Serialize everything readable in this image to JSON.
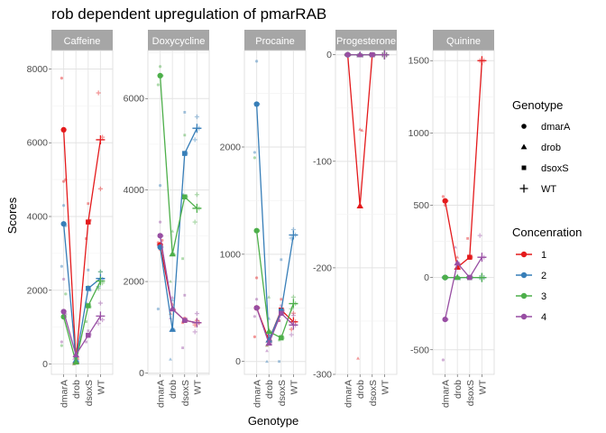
{
  "chart_data": {
    "type": "line",
    "title": "rob dependent upregulation of pmarRAB",
    "xlabel": "Genotype",
    "ylabel": "Scores",
    "x": [
      "dmarA",
      "drob",
      "dsoxS",
      "WT"
    ],
    "grid": true,
    "legends": [
      {
        "title": "Genotype",
        "entries": [
          {
            "label": "dmarA",
            "shape": "circle"
          },
          {
            "label": "drob",
            "shape": "triangle"
          },
          {
            "label": "dsoxS",
            "shape": "square"
          },
          {
            "label": "WT",
            "shape": "plus"
          }
        ]
      },
      {
        "title": "Concenration",
        "entries": [
          {
            "label": "1",
            "color": "#E41A1C"
          },
          {
            "label": "2",
            "color": "#377EB8"
          },
          {
            "label": "3",
            "color": "#4DAF4A"
          },
          {
            "label": "4",
            "color": "#984EA3"
          }
        ]
      }
    ],
    "panels": [
      {
        "name": "Caffeine",
        "ylim": [
          -280,
          8500
        ],
        "yticks": [
          "0",
          "2000",
          "4000",
          "6000",
          "8000"
        ],
        "series": [
          {
            "name": "1",
            "color": "#E41A1C",
            "values": [
              6350,
              80,
              3850,
              6080
            ],
            "raw": [
              [
                7750,
                4950,
                5000
              ],
              [
                0,
                200,
                150
              ],
              [
                3400,
                4350,
                3900
              ],
              [
                7350,
                4750,
                6150
              ]
            ]
          },
          {
            "name": "2",
            "color": "#377EB8",
            "values": [
              3800,
              100,
              2050,
              2320
            ],
            "raw": [
              [
                2650,
                4300,
                3750
              ],
              [
                50,
                250,
                100
              ],
              [
                1650,
                2550,
                2000
              ],
              [
                2100,
                2500,
                2300
              ]
            ]
          },
          {
            "name": "3",
            "color": "#4DAF4A",
            "values": [
              1280,
              50,
              1580,
              2250
            ],
            "raw": [
              [
                500,
                1350,
                1900
              ],
              [
                0,
                100,
                50
              ],
              [
                1150,
                2100,
                1550
              ],
              [
                2050,
                2500,
                2200
              ]
            ]
          },
          {
            "name": "4",
            "color": "#984EA3",
            "values": [
              1420,
              250,
              780,
              1300
            ],
            "raw": [
              [
                600,
                2300,
                1350
              ],
              [
                150,
                400,
                200
              ],
              [
                600,
                900,
                800
              ],
              [
                1100,
                1650,
                1200
              ]
            ]
          }
        ]
      },
      {
        "name": "Doxycycline",
        "ylim": [
          -30,
          7050
        ],
        "yticks": [
          "0",
          "2000",
          "4000",
          "6000"
        ],
        "series": [
          {
            "name": "1",
            "color": "#E41A1C",
            "values": [
              2800,
              1400,
              1150,
              1100
            ],
            "raw": [
              [
                2850,
                2700,
                2900
              ],
              [
                1300,
                1500,
                1400
              ],
              [
                1100,
                1200,
                1150
              ],
              [
                1050,
                1150,
                1100
              ]
            ]
          },
          {
            "name": "2",
            "color": "#377EB8",
            "values": [
              2750,
              950,
              4800,
              5350
            ],
            "raw": [
              [
                1400,
                4100,
                2750
              ],
              [
                300,
                1600,
                950
              ],
              [
                3900,
                5700,
                4800
              ],
              [
                5100,
                5600,
                5350
              ]
            ]
          },
          {
            "name": "3",
            "color": "#4DAF4A",
            "values": [
              6500,
              2600,
              3850,
              3600
            ],
            "raw": [
              [
                6300,
                6700,
                6500
              ],
              [
                2000,
                3100,
                2600
              ],
              [
                2500,
                5200,
                3850
              ],
              [
                3300,
                3900,
                3600
              ]
            ]
          },
          {
            "name": "4",
            "color": "#984EA3",
            "values": [
              3000,
              1400,
              1150,
              1100
            ],
            "raw": [
              [
                2800,
                3300,
                3000
              ],
              [
                1200,
                1650,
                1400
              ],
              [
                550,
                1700,
                1150
              ],
              [
                900,
                1300,
                1100
              ]
            ]
          }
        ]
      },
      {
        "name": "Procaine",
        "ylim": [
          -120,
          2900
        ],
        "yticks": [
          "0",
          "1000",
          "2000"
        ],
        "series": [
          {
            "name": "1",
            "color": "#E41A1C",
            "values": [
              500,
              200,
              480,
              370
            ],
            "raw": [
              [
                230,
                780,
                500
              ],
              [
                150,
                250,
                200
              ],
              [
                380,
                580,
                480
              ],
              [
                300,
                450,
                370
              ]
            ]
          },
          {
            "name": "2",
            "color": "#377EB8",
            "values": [
              2400,
              200,
              470,
              1180
            ],
            "raw": [
              [
                1950,
                2800,
                2400
              ],
              [
                0,
                400,
                200
              ],
              [
                0,
                950,
                470
              ],
              [
                1150,
                1230,
                1180
              ]
            ]
          },
          {
            "name": "3",
            "color": "#4DAF4A",
            "values": [
              1220,
              280,
              220,
              540
            ],
            "raw": [
              [
                1900,
                500,
                1220
              ],
              [
                150,
                600,
                280
              ],
              [
                200,
                240,
                220
              ],
              [
                490,
                600,
                540
              ]
            ]
          },
          {
            "name": "4",
            "color": "#984EA3",
            "values": [
              500,
              170,
              450,
              340
            ],
            "raw": [
              [
                420,
                580,
                500
              ],
              [
                100,
                250,
                170
              ],
              [
                380,
                520,
                450
              ],
              [
                250,
                430,
                340
              ]
            ]
          }
        ]
      },
      {
        "name": "Progesterone",
        "ylim": [
          -300,
          4
        ],
        "yticks": [
          "-300",
          "-200",
          "-100",
          "0"
        ],
        "series": [
          {
            "name": "1",
            "color": "#E41A1C",
            "values": [
              0,
              -142,
              0,
              0
            ],
            "raw": [
              [
                0,
                0,
                0
              ],
              [
                -285,
                -70,
                -71
              ],
              [
                0,
                0,
                0
              ],
              [
                0,
                0,
                0
              ]
            ]
          },
          {
            "name": "2",
            "color": "#377EB8",
            "values": [
              0,
              0,
              0,
              0
            ],
            "raw": [
              [
                0,
                0,
                0
              ],
              [
                0,
                0,
                0
              ],
              [
                0,
                0,
                0
              ],
              [
                0,
                0,
                0
              ]
            ]
          },
          {
            "name": "3",
            "color": "#4DAF4A",
            "values": [
              0,
              0,
              0,
              0
            ],
            "raw": [
              [
                0,
                0,
                0
              ],
              [
                0,
                0,
                0
              ],
              [
                0,
                0,
                0
              ],
              [
                0,
                0,
                0
              ]
            ]
          },
          {
            "name": "4",
            "color": "#984EA3",
            "values": [
              0,
              0,
              0,
              0
            ],
            "raw": [
              [
                0,
                0,
                0
              ],
              [
                0,
                0,
                0
              ],
              [
                0,
                0,
                0
              ],
              [
                0,
                0,
                0
              ]
            ]
          }
        ]
      },
      {
        "name": "Quinine",
        "ylim": [
          -670,
          1570
        ],
        "yticks": [
          "-500",
          "0",
          "500",
          "1000",
          "1500"
        ],
        "series": [
          {
            "name": "1",
            "color": "#E41A1C",
            "values": [
              530,
              70,
              140,
              1500
            ],
            "raw": [
              [
                560,
                500,
                530
              ],
              [
                0,
                140,
                70
              ],
              [
                270,
                0,
                140
              ],
              [
                1500,
                1500,
                1500
              ]
            ]
          },
          {
            "name": "2",
            "color": "#377EB8",
            "values": [
              0,
              0,
              0,
              0
            ],
            "raw": [
              [
                0,
                0,
                0
              ],
              [
                0,
                0,
                0
              ],
              [
                0,
                0,
                0
              ],
              [
                0,
                0,
                0
              ]
            ]
          },
          {
            "name": "3",
            "color": "#4DAF4A",
            "values": [
              0,
              0,
              0,
              0
            ],
            "raw": [
              [
                0,
                0,
                0
              ],
              [
                0,
                0,
                0
              ],
              [
                0,
                0,
                0
              ],
              [
                0,
                0,
                0
              ]
            ]
          },
          {
            "name": "4",
            "color": "#984EA3",
            "values": [
              -290,
              100,
              0,
              140
            ],
            "raw": [
              [
                -570,
                -10,
                -290
              ],
              [
                210,
                0,
                100
              ],
              [
                0,
                0,
                0
              ],
              [
                290,
                0,
                140
              ]
            ]
          }
        ]
      }
    ]
  }
}
